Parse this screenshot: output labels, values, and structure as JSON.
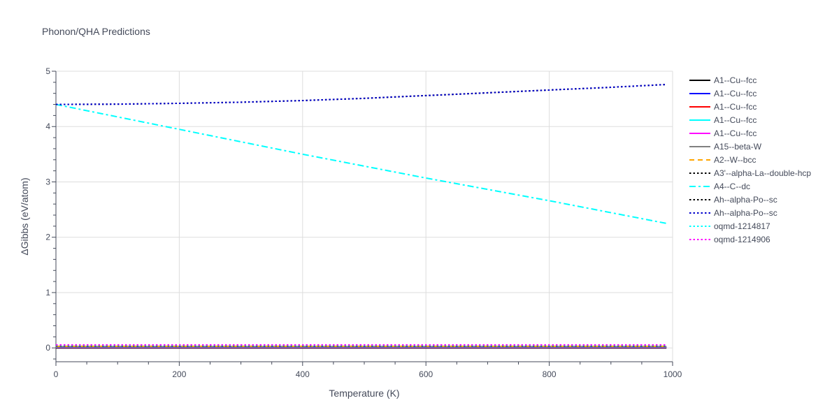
{
  "chart_data": {
    "type": "line",
    "title": "Phonon/QHA Predictions",
    "xlabel": "Temperature (K)",
    "ylabel": "ΔGibbs (eV/atom)",
    "xlim": [
      0,
      1000
    ],
    "ylim": [
      -0.25,
      5
    ],
    "x_ticks": [
      0,
      200,
      400,
      600,
      800,
      1000
    ],
    "y_ticks": [
      0,
      1,
      2,
      3,
      4,
      5
    ],
    "grid": true,
    "legend_position": "right",
    "series": [
      {
        "name": "A1--Cu--fcc",
        "color": "#000000",
        "dash": "solid",
        "x": [
          0,
          990
        ],
        "y": [
          0,
          0
        ]
      },
      {
        "name": "A1--Cu--fcc",
        "color": "#0000ff",
        "dash": "solid",
        "x": [
          0,
          990
        ],
        "y": [
          0.005,
          0.005
        ]
      },
      {
        "name": "A1--Cu--fcc",
        "color": "#ff0000",
        "dash": "solid",
        "x": [
          0,
          990
        ],
        "y": [
          0.01,
          0.01
        ]
      },
      {
        "name": "A1--Cu--fcc",
        "color": "#00ffff",
        "dash": "solid",
        "x": [
          0,
          990
        ],
        "y": [
          0.015,
          0.015
        ]
      },
      {
        "name": "A1--Cu--fcc",
        "color": "#ff00ff",
        "dash": "solid",
        "x": [
          0,
          990
        ],
        "y": [
          0.02,
          0.02
        ]
      },
      {
        "name": "A15--beta-W",
        "color": "#808080",
        "dash": "solid",
        "x": [
          0,
          990
        ],
        "y": [
          0.025,
          0.025
        ]
      },
      {
        "name": "A2--W--bcc",
        "color": "#ffa500",
        "dash": "dash",
        "x": [
          0,
          990
        ],
        "y": [
          0.03,
          0.03
        ]
      },
      {
        "name": "A3'--alpha-La--double-hcp",
        "color": "#000000",
        "dash": "dot",
        "x": [
          0,
          100,
          200,
          300,
          400,
          500,
          600,
          700,
          800,
          900,
          990
        ],
        "y": [
          4.4,
          4.405,
          4.42,
          4.44,
          4.47,
          4.51,
          4.56,
          4.61,
          4.66,
          4.71,
          4.76
        ]
      },
      {
        "name": "A4--C--dc",
        "color": "#00ffff",
        "dash": "dashdot",
        "x": [
          0,
          200,
          400,
          600,
          800,
          990
        ],
        "y": [
          4.4,
          3.95,
          3.5,
          3.07,
          2.66,
          2.25
        ]
      },
      {
        "name": "Ah--alpha-Po--sc",
        "color": "#000000",
        "dash": "dot",
        "x": [
          0,
          990
        ],
        "y": [
          0.035,
          0.035
        ]
      },
      {
        "name": "Ah--alpha-Po--sc",
        "color": "#0000cc",
        "dash": "dot",
        "x": [
          0,
          100,
          200,
          300,
          400,
          500,
          600,
          700,
          800,
          900,
          990
        ],
        "y": [
          4.4,
          4.405,
          4.42,
          4.44,
          4.47,
          4.51,
          4.56,
          4.61,
          4.66,
          4.71,
          4.76
        ]
      },
      {
        "name": "oqmd-1214817",
        "color": "#00ffff",
        "dash": "dot",
        "x": [
          0,
          990
        ],
        "y": [
          0.045,
          0.045
        ]
      },
      {
        "name": "oqmd-1214906",
        "color": "#ff00ff",
        "dash": "dot",
        "x": [
          0,
          990
        ],
        "y": [
          0.055,
          0.055
        ]
      }
    ]
  }
}
